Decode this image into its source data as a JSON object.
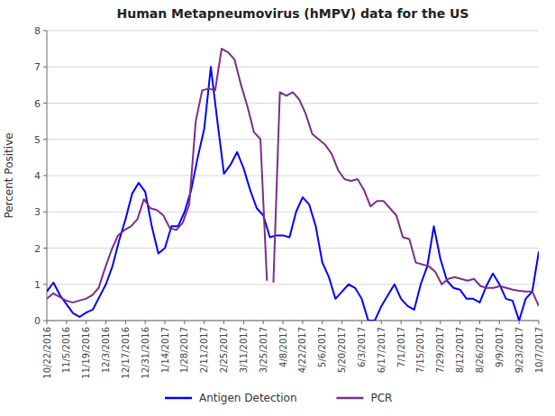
{
  "chart_data": {
    "type": "line",
    "title": "Human Metapneumovirus (hMPV) data for the US",
    "ylabel": "Percent Positive",
    "xlim": [
      0,
      5700
    ],
    "xticks": [
      {
        "value": 0,
        "label": "10/22/2016"
      },
      {
        "value": 228,
        "label": "11/5/2016"
      },
      {
        "value": 456,
        "label": "11/19/2016"
      },
      {
        "value": 684,
        "label": "12/3/2016"
      },
      {
        "value": 912,
        "label": "12/17/2016"
      },
      {
        "value": 1140,
        "label": "12/31/2016"
      },
      {
        "value": 1368,
        "label": "1/14/2017"
      },
      {
        "value": 1596,
        "label": "1/28/2017"
      },
      {
        "value": 1824,
        "label": "2/11/2017"
      },
      {
        "value": 2052,
        "label": "2/25/2017"
      },
      {
        "value": 2280,
        "label": "3/11/2017"
      },
      {
        "value": 2508,
        "label": "3/25/2017"
      },
      {
        "value": 2736,
        "label": "4/8/2017"
      },
      {
        "value": 2964,
        "label": "4/22/2017"
      },
      {
        "value": 3192,
        "label": "5/6/2017"
      },
      {
        "value": 3420,
        "label": "5/20/2017"
      },
      {
        "value": 3648,
        "label": "6/3/2017"
      },
      {
        "value": 3876,
        "label": "6/17/2017"
      },
      {
        "value": 4104,
        "label": "7/1/2017"
      },
      {
        "value": 4332,
        "label": "7/15/2017"
      },
      {
        "value": 4560,
        "label": "7/29/2017"
      },
      {
        "value": 4788,
        "label": "8/12/2017"
      },
      {
        "value": 5016,
        "label": "8/26/2017"
      },
      {
        "value": 5244,
        "label": "9/9/2017"
      },
      {
        "value": 5472,
        "label": "9/23/2017"
      },
      {
        "value": 5700,
        "label": "10/7/2017"
      }
    ],
    "ylim": [
      0,
      8
    ],
    "yticks": [
      0,
      1,
      2,
      3,
      4,
      5,
      6,
      7,
      8
    ],
    "grid": true,
    "legend": "bottom",
    "series": [
      {
        "name": "Antigen Detection",
        "color": "#0000FF",
        "x": [
          0,
          76,
          152,
          228,
          304,
          380,
          456,
          532,
          608,
          684,
          760,
          836,
          912,
          988,
          1064,
          1140,
          1216,
          1292,
          1368,
          1444,
          1520,
          1596,
          1672,
          1748,
          1824,
          1900,
          1976,
          2052,
          2128,
          2204,
          2280,
          2356,
          2432,
          2508,
          2584,
          2660,
          2736,
          2812,
          2888,
          2964,
          3040,
          3116,
          3192,
          3268,
          3344,
          3420,
          3496,
          3572,
          3648,
          3724,
          3800,
          3876,
          3952,
          4028,
          4104,
          4180,
          4256,
          4332,
          4408,
          4484,
          4560,
          4636,
          4712,
          4788,
          4864,
          4940,
          5016,
          5092,
          5168,
          5244,
          5320,
          5396,
          5472,
          5548,
          5624,
          5700
        ],
        "values": [
          0.8,
          1.05,
          0.7,
          0.45,
          0.2,
          0.1,
          0.22,
          0.3,
          0.65,
          1.0,
          1.5,
          2.2,
          2.8,
          3.5,
          3.8,
          3.55,
          2.6,
          1.85,
          2.0,
          2.6,
          2.6,
          3.0,
          3.6,
          4.5,
          5.3,
          7.0,
          5.5,
          4.05,
          4.3,
          4.65,
          4.2,
          3.6,
          3.1,
          2.9,
          2.3,
          2.35,
          2.35,
          2.3,
          3.0,
          3.4,
          3.2,
          2.6,
          1.6,
          1.2,
          0.6,
          0.8,
          1.0,
          0.9,
          0.6,
          0.0,
          0.0,
          0.4,
          0.7,
          1.0,
          0.6,
          0.4,
          0.3,
          1.0,
          1.5,
          2.6,
          1.7,
          1.1,
          0.9,
          0.85,
          0.6,
          0.6,
          0.5,
          0.95,
          1.3,
          1.0,
          0.6,
          0.55,
          0.0,
          0.6,
          0.8,
          1.9
        ]
      },
      {
        "name": "PCR",
        "color": "#7B2D8B",
        "x": [
          0,
          75,
          150,
          225,
          300,
          375,
          450,
          525,
          600,
          675,
          750,
          825,
          900,
          975,
          1050,
          1125,
          1200,
          1275,
          1350,
          1425,
          1500,
          1575,
          1650,
          1725,
          1800,
          1875,
          1950,
          2025,
          2100,
          2175,
          2250,
          2325,
          2400,
          2475,
          2550,
          null,
          2625,
          2700,
          2775,
          2850,
          2925,
          3000,
          3075,
          3150,
          3225,
          3300,
          3375,
          3450,
          3525,
          3600,
          3675,
          3750,
          3825,
          3900,
          3975,
          4050,
          4125,
          4200,
          4275,
          4350,
          4425,
          4500,
          4575,
          4650,
          4725,
          4800,
          4875,
          4950,
          5025,
          5100,
          5175,
          5250,
          5325,
          5400,
          5475,
          5550,
          5625,
          5700
        ],
        "values": [
          0.6,
          0.75,
          0.65,
          0.55,
          0.5,
          0.55,
          0.6,
          0.7,
          0.9,
          1.45,
          1.95,
          2.35,
          2.5,
          2.6,
          2.8,
          3.35,
          3.1,
          3.05,
          2.9,
          2.55,
          2.5,
          2.7,
          3.2,
          5.5,
          6.35,
          6.4,
          6.35,
          7.5,
          7.4,
          7.2,
          6.5,
          5.9,
          5.2,
          5.0,
          1.1,
          null,
          1.05,
          6.3,
          6.2,
          6.3,
          6.1,
          5.7,
          5.15,
          5.0,
          4.85,
          4.6,
          4.15,
          3.9,
          3.85,
          3.9,
          3.6,
          3.15,
          3.3,
          3.3,
          3.1,
          2.9,
          2.3,
          2.25,
          1.6,
          1.55,
          1.5,
          1.35,
          1.0,
          1.15,
          1.2,
          1.15,
          1.1,
          1.15,
          0.95,
          0.9,
          0.9,
          0.95,
          0.9,
          0.85,
          0.82,
          0.8,
          0.8,
          0.4
        ]
      }
    ]
  }
}
